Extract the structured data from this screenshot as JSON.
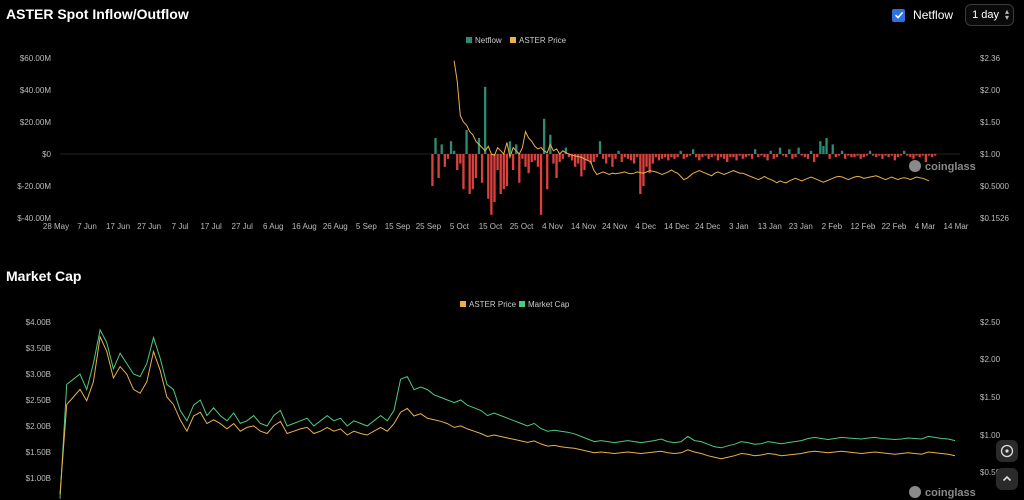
{
  "titles": {
    "flow": "ASTER Spot Inflow/Outflow",
    "cap": "Market Cap"
  },
  "controls": {
    "netflow_label": "Netflow",
    "interval": "1 day"
  },
  "watermark": "coinglass",
  "colors": {
    "netflow_pos": "#2e8b74",
    "netflow_neg": "#d9413e",
    "price": "#e9b04b",
    "cap": "#4fc97e",
    "bg": "#000000",
    "accent": "#2f6fe0"
  },
  "chart_data": [
    {
      "type": "bar",
      "title": "ASTER Spot Inflow/Outflow",
      "legend": [
        "Netflow",
        "ASTER Price"
      ],
      "legend_position": "top-center",
      "x_ticks": [
        "28 May",
        "7 Jun",
        "17 Jun",
        "27 Jun",
        "7 Jul",
        "17 Jul",
        "27 Jul",
        "6 Aug",
        "16 Aug",
        "26 Aug",
        "5 Sep",
        "15 Sep",
        "25 Sep",
        "5 Oct",
        "15 Oct",
        "25 Oct",
        "4 Nov",
        "14 Nov",
        "24 Nov",
        "4 Dec",
        "14 Dec",
        "24 Dec",
        "3 Jan",
        "13 Jan",
        "23 Jan",
        "2 Feb",
        "12 Feb",
        "22 Feb",
        "4 Mar",
        "14 Mar"
      ],
      "y_ticks_left": [
        "$60.00M",
        "$40.00M",
        "$20.00M",
        "$0",
        "$-20.00M",
        "$-40.00M"
      ],
      "y_ticks_right": [
        "$2.36",
        "$2.00",
        "$1.50",
        "$1.00",
        "$0.5000",
        "$0.1526"
      ],
      "ylim_left": [
        -40,
        60
      ],
      "netflow_start_day": 120,
      "netflow_m": [
        -20,
        10,
        -15,
        6,
        -8,
        -3,
        8,
        2,
        -10,
        -6,
        -22,
        15,
        -25,
        -22,
        -15,
        10,
        -18,
        42,
        -28,
        -38,
        -30,
        -10,
        -25,
        -22,
        -20,
        8,
        -10,
        6,
        -18,
        -3,
        -8,
        -12,
        -5,
        -4,
        -8,
        -38,
        22,
        -22,
        12,
        -6,
        -15,
        -5,
        -3,
        4,
        -2,
        -4,
        -8,
        -6,
        -14,
        -10,
        -4,
        -6,
        -5,
        -2,
        8,
        -3,
        -6,
        -2,
        -8,
        -3,
        2,
        -5,
        -2,
        -3,
        -4,
        -6,
        -2,
        -25,
        -20,
        -8,
        -12,
        -6,
        -2,
        -4,
        -3,
        -2,
        -4,
        -2,
        -3,
        -2,
        2,
        -3,
        -2,
        -1,
        3,
        -2,
        -4,
        -2,
        -1,
        -3,
        -2,
        -1,
        -4,
        -2,
        -3,
        -5,
        -2,
        -2,
        -4,
        -1,
        -3,
        -2,
        -1,
        -3,
        3,
        -2,
        -1,
        -2,
        -4,
        2,
        -3,
        -2,
        4,
        -1,
        -2,
        3,
        -3,
        -2,
        4,
        -1,
        -2,
        -3,
        2,
        -5,
        -2,
        8,
        5,
        10,
        -3,
        6,
        -2,
        -1,
        2,
        -3,
        -1,
        -2,
        -2,
        -1,
        -3,
        -2,
        -1,
        2,
        -1,
        -2,
        -1,
        -3,
        -1,
        -2,
        -1,
        -4,
        -2,
        -1,
        2,
        -1,
        -2,
        -3,
        -1,
        -2,
        -1,
        -5,
        -1,
        -2,
        -1
      ],
      "price_start_day": 127,
      "price_usd": [
        2.33,
        2.1,
        1.6,
        1.5,
        1.45,
        1.35,
        1.3,
        1.2,
        1.15,
        1.1,
        1.05,
        1.12,
        1.0,
        0.98,
        1.1,
        1.05,
        1.0,
        1.18,
        0.95,
        1.1,
        1.05,
        1.0,
        1.1,
        1.35,
        1.25,
        1.2,
        1.12,
        1.08,
        1.1,
        1.05,
        1.02,
        1.15,
        1.05,
        1.08,
        1.0,
        1.05,
        1.02,
        1.0,
        0.98,
        0.97,
        0.96,
        0.95,
        0.92,
        0.9,
        0.88,
        0.75,
        0.68,
        0.7,
        0.72,
        0.7,
        0.68,
        0.7,
        0.69,
        0.7,
        0.71,
        0.72,
        0.7,
        0.69,
        0.7,
        0.72,
        0.71,
        0.7,
        0.72,
        0.74,
        0.73,
        0.72,
        0.7,
        0.68,
        0.7,
        0.72,
        0.75,
        0.72,
        0.7,
        0.65,
        0.6,
        0.62,
        0.66,
        0.7,
        0.72,
        0.74,
        0.72,
        0.7,
        0.68,
        0.66,
        0.7,
        0.72,
        0.7,
        0.68,
        0.7,
        0.72,
        0.74,
        0.72,
        0.7,
        0.7,
        0.68,
        0.66,
        0.64,
        0.62,
        0.6,
        0.62,
        0.65,
        0.62,
        0.6,
        0.58,
        0.55,
        0.58,
        0.56,
        0.55,
        0.58,
        0.6,
        0.62,
        0.6,
        0.58,
        0.6,
        0.62,
        0.64,
        0.62,
        0.6,
        0.58,
        0.56,
        0.58,
        0.6,
        0.62,
        0.64,
        0.65,
        0.64,
        0.62,
        0.6,
        0.62,
        0.64,
        0.65,
        0.64,
        0.62,
        0.63,
        0.64,
        0.65,
        0.66,
        0.64,
        0.62,
        0.6,
        0.62,
        0.64,
        0.62,
        0.6,
        0.62,
        0.63,
        0.62,
        0.6,
        0.62,
        0.64,
        0.63,
        0.62,
        0.6,
        0.58
      ]
    },
    {
      "type": "line",
      "title": "Market Cap",
      "legend": [
        "ASTER Price",
        "Market Cap"
      ],
      "legend_position": "top-center",
      "y_ticks_left": [
        "$4.00B",
        "$3.50B",
        "$3.00B",
        "$2.50B",
        "$2.00B",
        "$1.50B",
        "$1.00B"
      ],
      "y_ticks_right": [
        "$2.50",
        "$2.00",
        "$1.50",
        "$1.00",
        "$0.50"
      ],
      "ylim_left": [
        1.0,
        4.0
      ],
      "cap_b": [
        0.6,
        2.8,
        2.9,
        3.0,
        2.7,
        3.2,
        3.85,
        3.6,
        3.1,
        3.4,
        3.2,
        3.0,
        2.95,
        3.2,
        3.7,
        3.3,
        2.8,
        2.7,
        2.3,
        2.1,
        2.4,
        2.5,
        2.2,
        2.35,
        2.2,
        2.1,
        2.25,
        2.05,
        2.1,
        2.2,
        2.05,
        2.0,
        2.2,
        2.3,
        2.0,
        2.05,
        2.1,
        2.15,
        2.0,
        2.1,
        2.2,
        2.1,
        2.15,
        2.0,
        2.1,
        2.05,
        2.0,
        2.1,
        2.2,
        2.1,
        2.3,
        2.9,
        2.95,
        2.7,
        2.75,
        2.7,
        2.6,
        2.55,
        2.5,
        2.45,
        2.5,
        2.4,
        2.35,
        2.3,
        2.2,
        2.25,
        2.2,
        2.15,
        2.1,
        2.05,
        2.0,
        2.05,
        1.95,
        1.9,
        1.92,
        1.9,
        1.88,
        1.85,
        1.8,
        1.75,
        1.7,
        1.72,
        1.7,
        1.68,
        1.7,
        1.72,
        1.7,
        1.68,
        1.7,
        1.72,
        1.75,
        1.7,
        1.68,
        1.7,
        1.8,
        1.72,
        1.7,
        1.65,
        1.6,
        1.58,
        1.62,
        1.65,
        1.7,
        1.68,
        1.65,
        1.66,
        1.7,
        1.68,
        1.66,
        1.68,
        1.7,
        1.72,
        1.76,
        1.78,
        1.76,
        1.74,
        1.76,
        1.78,
        1.77,
        1.76,
        1.75,
        1.77,
        1.78,
        1.76,
        1.75,
        1.74,
        1.75,
        1.77,
        1.76,
        1.75,
        1.8,
        1.78,
        1.76,
        1.75,
        1.72
      ],
      "price_usd": [
        0.2,
        1.4,
        1.5,
        1.6,
        1.45,
        1.7,
        2.3,
        2.1,
        1.75,
        1.9,
        1.8,
        1.6,
        1.55,
        1.7,
        2.1,
        1.85,
        1.5,
        1.4,
        1.2,
        1.05,
        1.25,
        1.3,
        1.15,
        1.2,
        1.15,
        1.08,
        1.15,
        1.05,
        1.1,
        1.12,
        1.05,
        1.02,
        1.12,
        1.18,
        1.02,
        1.05,
        1.08,
        1.1,
        1.02,
        1.05,
        1.1,
        1.05,
        1.08,
        1.0,
        1.05,
        1.02,
        1.0,
        1.05,
        1.1,
        1.05,
        1.15,
        1.3,
        1.35,
        1.25,
        1.28,
        1.22,
        1.2,
        1.18,
        1.15,
        1.1,
        1.12,
        1.08,
        1.05,
        1.02,
        0.98,
        1.0,
        0.98,
        0.96,
        0.94,
        0.92,
        0.9,
        0.92,
        0.88,
        0.85,
        0.86,
        0.84,
        0.83,
        0.82,
        0.8,
        0.78,
        0.76,
        0.77,
        0.76,
        0.75,
        0.76,
        0.77,
        0.76,
        0.75,
        0.76,
        0.77,
        0.78,
        0.76,
        0.75,
        0.76,
        0.8,
        0.77,
        0.75,
        0.72,
        0.7,
        0.68,
        0.7,
        0.72,
        0.75,
        0.74,
        0.72,
        0.73,
        0.75,
        0.74,
        0.72,
        0.73,
        0.74,
        0.75,
        0.77,
        0.78,
        0.77,
        0.76,
        0.77,
        0.78,
        0.77,
        0.76,
        0.75,
        0.76,
        0.77,
        0.76,
        0.75,
        0.74,
        0.75,
        0.76,
        0.75,
        0.74,
        0.77,
        0.76,
        0.75,
        0.74,
        0.72
      ]
    }
  ]
}
